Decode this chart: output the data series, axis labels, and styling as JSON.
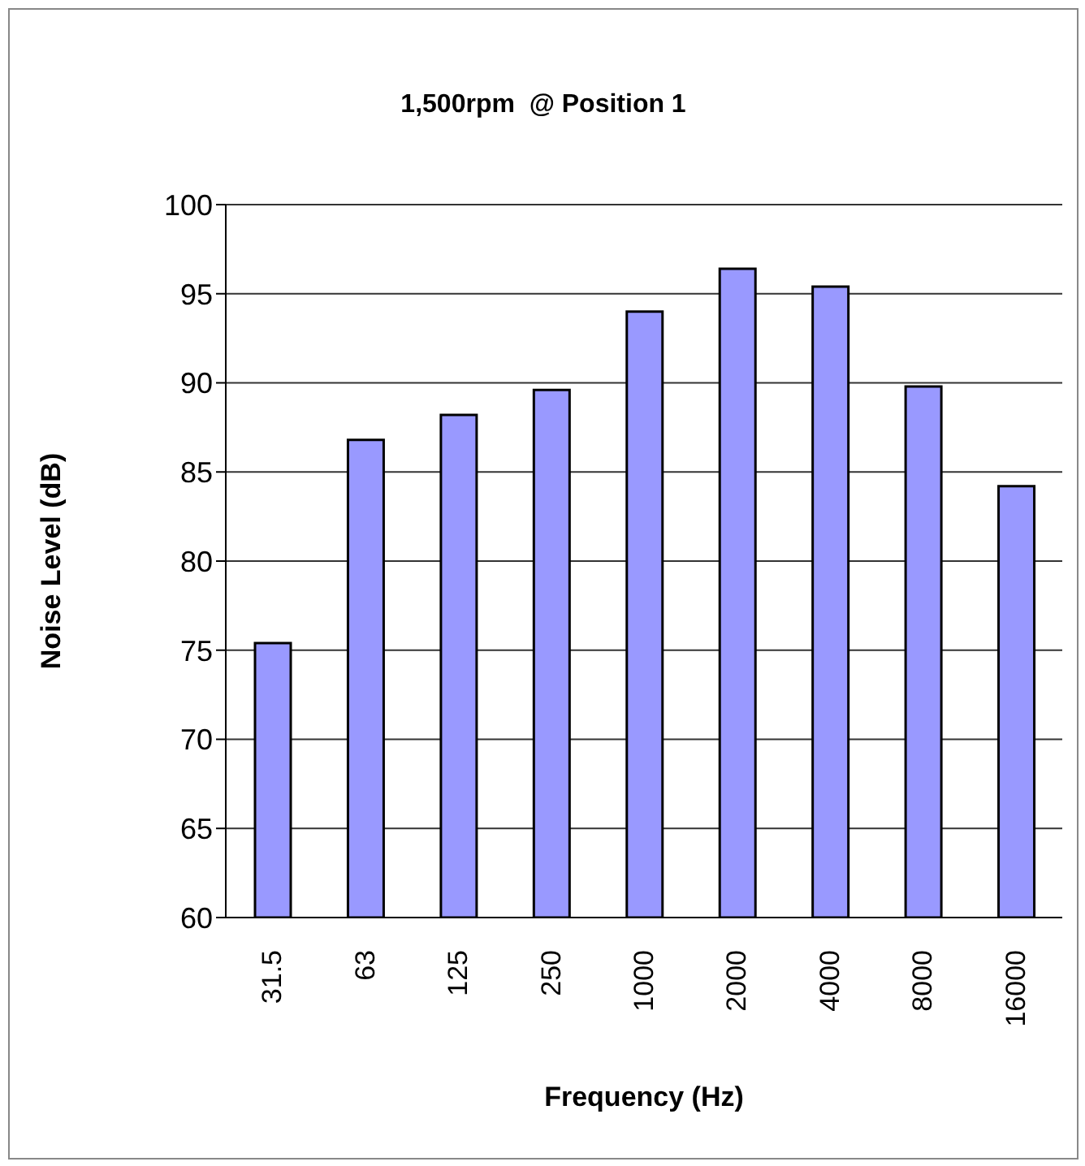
{
  "chart_data": {
    "type": "bar",
    "title": "1,500rpm  @ Position 1",
    "xlabel": "Frequency (Hz)",
    "ylabel": "Noise Level (dB)",
    "categories": [
      "31.5",
      "63",
      "125",
      "250",
      "1000",
      "2000",
      "4000",
      "8000",
      "16000"
    ],
    "values": [
      75.4,
      86.8,
      88.2,
      89.6,
      94.0,
      96.4,
      95.4,
      89.8,
      84.2
    ],
    "color": "#9999ff",
    "ylim": [
      60,
      100
    ],
    "yticks": [
      60,
      65,
      70,
      75,
      80,
      85,
      90,
      95,
      100
    ],
    "grid": "y"
  }
}
